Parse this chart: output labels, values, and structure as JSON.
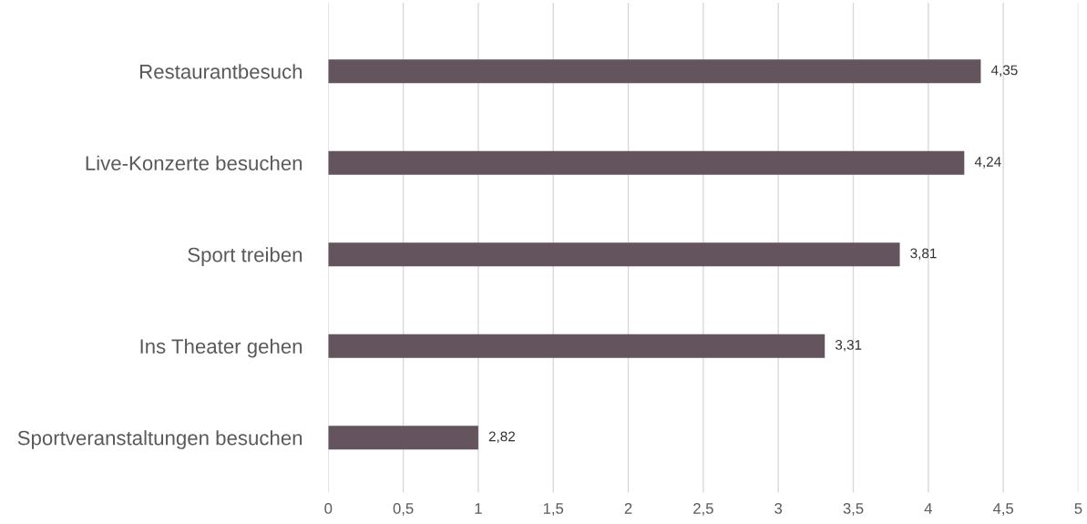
{
  "chart_data": {
    "type": "bar",
    "orientation": "horizontal",
    "categories": [
      "Restaurantbesuch",
      "Live-Konzerte besuchen",
      "Sport treiben",
      "Ins Theater gehen",
      "Sportveranstaltungen besuchen"
    ],
    "values": [
      4.35,
      4.24,
      3.81,
      3.31,
      1.0
    ],
    "value_labels": [
      "4,35",
      "4,24",
      "3,81",
      "3,31",
      null
    ],
    "annotations": [
      {
        "text": "2,82",
        "x": 1.0,
        "y": "Sportveranstaltungen besuchen"
      }
    ],
    "color": "#63545d",
    "xlim": [
      0,
      5
    ],
    "xticks": [
      0,
      {
        "value": 0.5,
        "label": "0,5"
      },
      1,
      {
        "value": 1.5,
        "label": "1,5"
      },
      2,
      {
        "value": 2.5,
        "label": "2,5"
      },
      3,
      {
        "value": 3.5,
        "label": "3,5"
      },
      4,
      {
        "value": 4.5,
        "label": "4,5"
      },
      5
    ],
    "grid": "x"
  }
}
